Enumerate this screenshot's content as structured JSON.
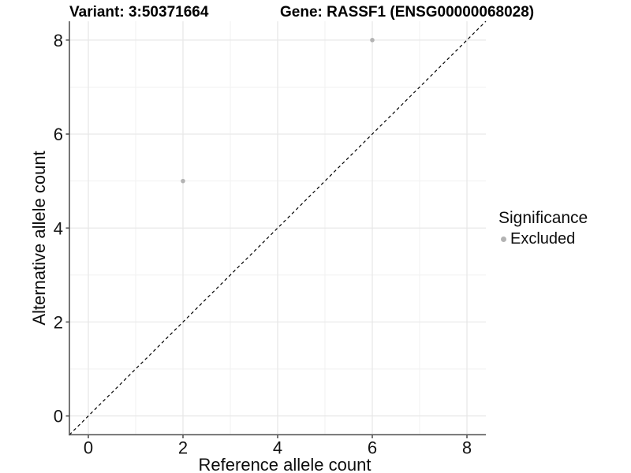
{
  "chart_data": {
    "type": "scatter",
    "title_left": "Variant: 3:50371664",
    "title_right": "Gene: RASSF1 (ENSG00000068028)",
    "xlabel": "Reference allele count",
    "ylabel": "Alternative allele count",
    "xlim": [
      -0.4,
      8.4
    ],
    "ylim": [
      -0.4,
      8.4
    ],
    "xticks": [
      0,
      2,
      4,
      6,
      8
    ],
    "yticks": [
      0,
      2,
      4,
      6,
      8
    ],
    "minor_xticks": [
      1,
      3,
      5,
      7
    ],
    "minor_yticks": [
      1,
      3,
      5,
      7
    ],
    "grid": true,
    "reference_line": {
      "type": "identity",
      "style": "dashed",
      "color": "#000000"
    },
    "series": [
      {
        "name": "Excluded",
        "color": "#b3b3b3",
        "points": [
          {
            "x": 2,
            "y": 5
          },
          {
            "x": 6,
            "y": 8
          }
        ]
      }
    ],
    "legend": {
      "title": "Significance",
      "position": "right",
      "items": [
        {
          "label": "Excluded",
          "color": "#b3b3b3"
        }
      ]
    },
    "style_colors": {
      "background": "#ffffff",
      "grid_major": "#e7e7e7",
      "grid_minor": "#f1f1f1",
      "axis_line": "#545454",
      "tick_text": "#141414"
    }
  }
}
